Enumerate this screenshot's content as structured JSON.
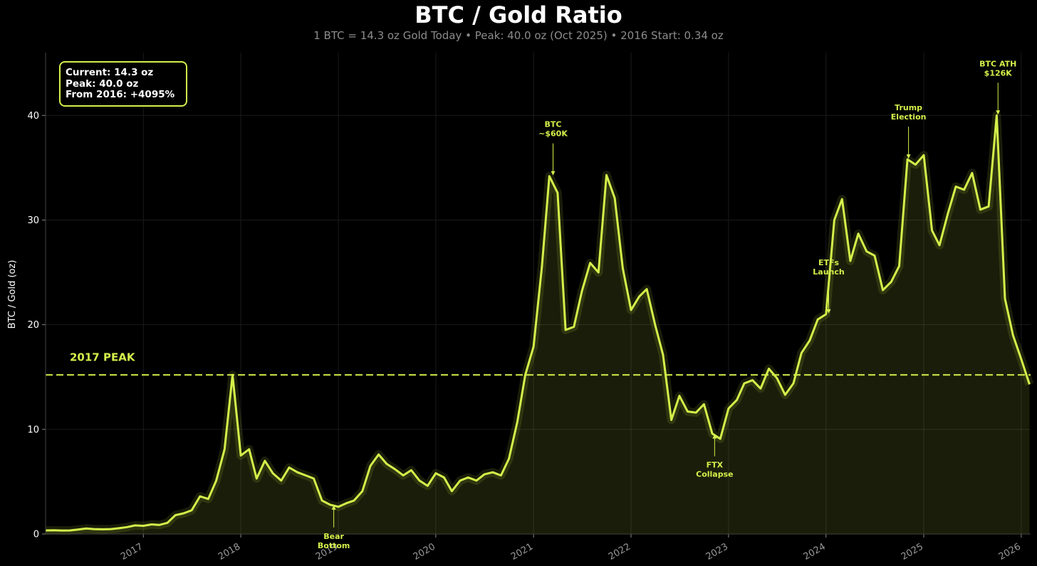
{
  "chart_data": {
    "type": "area",
    "title": "BTC / Gold Ratio",
    "subtitle": "1 BTC = 14.3 oz Gold Today  •  Peak: 40.0 oz (Oct 2025)  •  2016 Start: 0.34 oz",
    "xlabel": "",
    "ylabel": "BTC / Gold (oz)",
    "ylim": [
      0,
      46
    ],
    "xlim": [
      "2016-01-01",
      "2026-02-05"
    ],
    "yticks": [
      0,
      10,
      20,
      30,
      40
    ],
    "xticks": [
      "2017",
      "2018",
      "2019",
      "2020",
      "2021",
      "2022",
      "2023",
      "2024",
      "2025",
      "2026"
    ],
    "grid": true,
    "line_color": "#d4f04a",
    "reference_line": {
      "y": 15.2,
      "label": "2017 PEAK",
      "style": "dashed"
    },
    "stats_box": [
      "Current: 14.3 oz",
      "Peak: 40.0 oz",
      "From 2016: +4095%"
    ],
    "annotations": [
      {
        "text": [
          "Bear",
          "Bottom"
        ],
        "x": "2018-12-15",
        "y": 2.8,
        "position": "below"
      },
      {
        "text": [
          "BTC",
          "~$60K"
        ],
        "x": "2021-03-15",
        "y": 34.2,
        "position": "above"
      },
      {
        "text": [
          "FTX",
          "Collapse"
        ],
        "x": "2022-11-10",
        "y": 9.6,
        "position": "below"
      },
      {
        "text": [
          "ETFs",
          "Launch"
        ],
        "x": "2024-01-11",
        "y": 21.0,
        "position": "above"
      },
      {
        "text": [
          "Trump",
          "Election"
        ],
        "x": "2024-11-05",
        "y": 35.8,
        "position": "above"
      },
      {
        "text": [
          "BTC ATH",
          "$126K"
        ],
        "x": "2025-10-06",
        "y": 40.0,
        "position": "above"
      }
    ],
    "series": [
      {
        "x": [
          "2016-01",
          "2016-02",
          "2016-03",
          "2016-04",
          "2016-05",
          "2016-06",
          "2016-07",
          "2016-08",
          "2016-09",
          "2016-10",
          "2016-11",
          "2016-12",
          "2017-01",
          "2017-02",
          "2017-03",
          "2017-04",
          "2017-05",
          "2017-06",
          "2017-07",
          "2017-08",
          "2017-09",
          "2017-10",
          "2017-11",
          "2017-12",
          "2018-01",
          "2018-02",
          "2018-03",
          "2018-04",
          "2018-05",
          "2018-06",
          "2018-07",
          "2018-08",
          "2018-09",
          "2018-10",
          "2018-11",
          "2018-12",
          "2019-01",
          "2019-02",
          "2019-03",
          "2019-04",
          "2019-05",
          "2019-06",
          "2019-07",
          "2019-08",
          "2019-09",
          "2019-10",
          "2019-11",
          "2019-12",
          "2020-01",
          "2020-02",
          "2020-03",
          "2020-04",
          "2020-05",
          "2020-06",
          "2020-07",
          "2020-08",
          "2020-09",
          "2020-10",
          "2020-11",
          "2020-12",
          "2021-01",
          "2021-02",
          "2021-03",
          "2021-04",
          "2021-05",
          "2021-06",
          "2021-07",
          "2021-08",
          "2021-09",
          "2021-10",
          "2021-11",
          "2021-12",
          "2022-01",
          "2022-02",
          "2022-03",
          "2022-04",
          "2022-05",
          "2022-06",
          "2022-07",
          "2022-08",
          "2022-09",
          "2022-10",
          "2022-11",
          "2022-12",
          "2023-01",
          "2023-02",
          "2023-03",
          "2023-04",
          "2023-05",
          "2023-06",
          "2023-07",
          "2023-08",
          "2023-09",
          "2023-10",
          "2023-11",
          "2023-12",
          "2024-01",
          "2024-02",
          "2024-03",
          "2024-04",
          "2024-05",
          "2024-06",
          "2024-07",
          "2024-08",
          "2024-09",
          "2024-10",
          "2024-11",
          "2024-12",
          "2025-01",
          "2025-02",
          "2025-03",
          "2025-04",
          "2025-05",
          "2025-06",
          "2025-07",
          "2025-08",
          "2025-09",
          "2025-10",
          "2025-11",
          "2025-12",
          "2026-01",
          "2026-02"
        ],
        "values": [
          0.34,
          0.35,
          0.33,
          0.34,
          0.42,
          0.52,
          0.47,
          0.45,
          0.47,
          0.55,
          0.66,
          0.82,
          0.78,
          0.92,
          0.86,
          1.07,
          1.8,
          1.98,
          2.27,
          3.6,
          3.35,
          5.1,
          8.1,
          15.2,
          7.5,
          8.1,
          5.3,
          7.0,
          5.8,
          5.1,
          6.35,
          5.9,
          5.6,
          5.3,
          3.2,
          2.8,
          2.6,
          2.95,
          3.2,
          4.1,
          6.5,
          7.6,
          6.7,
          6.2,
          5.6,
          6.1,
          5.1,
          4.6,
          5.8,
          5.4,
          4.1,
          5.1,
          5.4,
          5.1,
          5.7,
          5.9,
          5.6,
          7.2,
          10.7,
          15.2,
          17.9,
          25.5,
          34.2,
          32.6,
          19.5,
          19.8,
          23.2,
          25.9,
          25.0,
          34.3,
          32.1,
          25.4,
          21.4,
          22.7,
          23.4,
          20.0,
          17.1,
          10.9,
          13.2,
          11.7,
          11.6,
          12.4,
          9.6,
          9.1,
          12.0,
          12.8,
          14.4,
          14.7,
          13.9,
          15.8,
          14.9,
          13.3,
          14.4,
          17.3,
          18.5,
          20.5,
          21.0,
          30.0,
          32.0,
          26.1,
          28.7,
          27.0,
          26.6,
          23.3,
          24.1,
          25.6,
          35.8,
          35.3,
          36.2,
          29.0,
          27.6,
          30.6,
          33.2,
          32.9,
          34.5,
          31.0,
          31.3,
          40.0,
          22.5,
          19.0,
          16.7,
          14.3
        ]
      }
    ]
  }
}
